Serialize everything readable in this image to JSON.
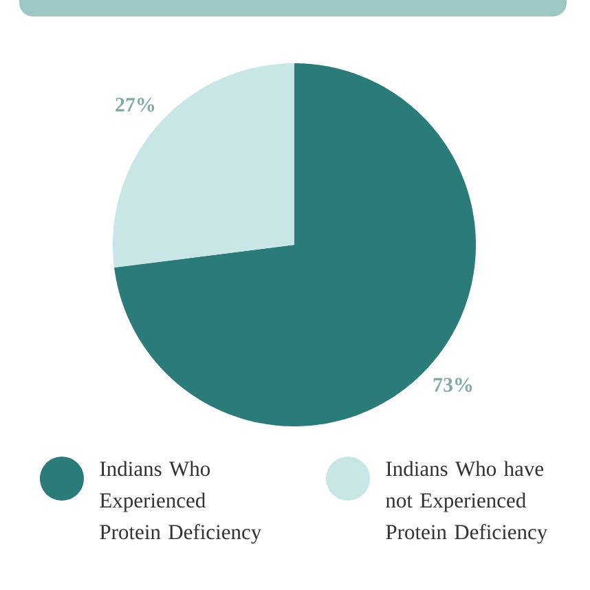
{
  "chart_data": {
    "type": "pie",
    "categories": [
      "Indians Who Experienced Protein Deficiency",
      "Indians Who have not Experienced Protein Deficiency"
    ],
    "values": [
      73,
      27
    ],
    "colors": [
      "#2a7b79",
      "#c8e6e6"
    ],
    "value_labels": [
      "73%",
      "27%"
    ],
    "legend": "bottom"
  }
}
